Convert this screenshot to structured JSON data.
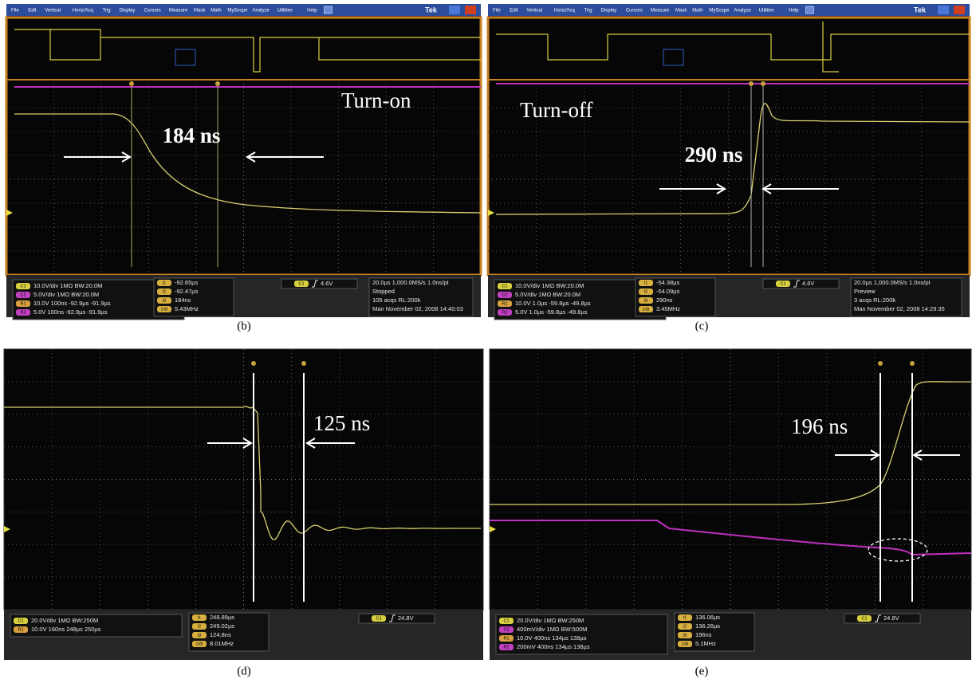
{
  "panels": [
    {
      "caption": "(b)",
      "menu": [
        "File",
        "Edit",
        "Vertical",
        "Horiz/Acq",
        "Trig",
        "Display",
        "Cursors",
        "Measure",
        "Mask",
        "Math",
        "MyScope",
        "Analyze",
        "Utilities",
        "Help"
      ],
      "brand": "Tek",
      "annotations": [
        "Turn-on",
        "184 ns"
      ],
      "channels": [
        {
          "badge": "C1",
          "text": "10.0V/div      1MΩ  BW:20.0M"
        },
        {
          "badge": "C2",
          "text": "5.0V/div        1MΩ  BW:20.0M"
        },
        {
          "badge": "R1",
          "text": "10.0V   100ns  -92.9µs  -91.9µs"
        },
        {
          "badge": "R2",
          "text": "5.0V     100ns  -92.9µs  -91.9µs"
        }
      ],
      "cursors": [
        {
          "badge": "t1",
          "text": "-92.65µs"
        },
        {
          "badge": "t2",
          "text": "-92.47µs"
        },
        {
          "badge": "Δt",
          "text": "184ns"
        },
        {
          "badge": "1/Δt",
          "text": "5.43MHz"
        }
      ],
      "trigger": {
        "source": "C1",
        "level": "4.6V"
      },
      "acquisition": [
        "20.0µs  1,000.0MS/s     1.0ns/pt",
        "Stopped",
        "105 acqs                 RL:200k",
        "Man   November 02, 2008   14:40:03"
      ]
    },
    {
      "caption": "(c)",
      "menu": [
        "File",
        "Edit",
        "Vertical",
        "Horiz/Acq",
        "Trig",
        "Display",
        "Cursors",
        "Measure",
        "Mask",
        "Math",
        "MyScope",
        "Analyze",
        "Utilities",
        "Help"
      ],
      "brand": "Tek",
      "annotations": [
        "Turn-off",
        "290 ns"
      ],
      "channels": [
        {
          "badge": "C1",
          "text": "10.0V/div      1MΩ  BW:20.0M"
        },
        {
          "badge": "C2",
          "text": "5.0V/div        1MΩ  BW:20.0M"
        },
        {
          "badge": "R1",
          "text": "10.0V   1.0µs  -59.8µs  -49.8µs"
        },
        {
          "badge": "R2",
          "text": "5.0V     1.0µs  -59.8µs  -49.8µs"
        }
      ],
      "cursors": [
        {
          "badge": "t1",
          "text": "-54.38µs"
        },
        {
          "badge": "t2",
          "text": "-54.09µs"
        },
        {
          "badge": "Δt",
          "text": "290ns"
        },
        {
          "badge": "1/Δt",
          "text": "3.45MHz"
        }
      ],
      "trigger": {
        "source": "C1",
        "level": "4.6V"
      },
      "acquisition": [
        "20.0µs  1,000.0MS/s     1.0ns/pt",
        "Preview",
        "3 acqs                     RL:200k",
        "Man   November 02, 2008   14:29:35"
      ]
    },
    {
      "caption": "(d)",
      "annotations": [
        "125 ns"
      ],
      "channels": [
        {
          "badge": "C1",
          "text": "20.0V/div          1MΩ  BW:250M"
        },
        {
          "badge": "R1",
          "text": "10.0V    160ns    248µs    250µs"
        }
      ],
      "cursors": [
        {
          "badge": "t1",
          "text": "248.89µs"
        },
        {
          "badge": "t2",
          "text": "249.02µs"
        },
        {
          "badge": "Δt",
          "text": "124.8ns"
        },
        {
          "badge": "1/Δt",
          "text": "8.01MHz"
        }
      ],
      "trigger": {
        "source": "C1",
        "level": "24.8V"
      }
    },
    {
      "caption": "(e)",
      "annotations": [
        "196 ns"
      ],
      "channels": [
        {
          "badge": "C1",
          "text": "20.0V/div          1MΩ  BW:250M"
        },
        {
          "badge": "C2",
          "text": "400mV/div        1MΩ  BW:500M"
        },
        {
          "badge": "R1",
          "text": "10.0V    400ns    134µs    138µs"
        },
        {
          "badge": "R2",
          "text": "200mV   400ns    134µs    138µs"
        }
      ],
      "cursors": [
        {
          "badge": "t1",
          "text": "136.06µs"
        },
        {
          "badge": "t2",
          "text": "136.26µs"
        },
        {
          "badge": "Δt",
          "text": "196ns"
        },
        {
          "badge": "1/Δt",
          "text": "5.1MHz"
        }
      ],
      "trigger": {
        "source": "C1",
        "level": "24.8V"
      }
    }
  ]
}
